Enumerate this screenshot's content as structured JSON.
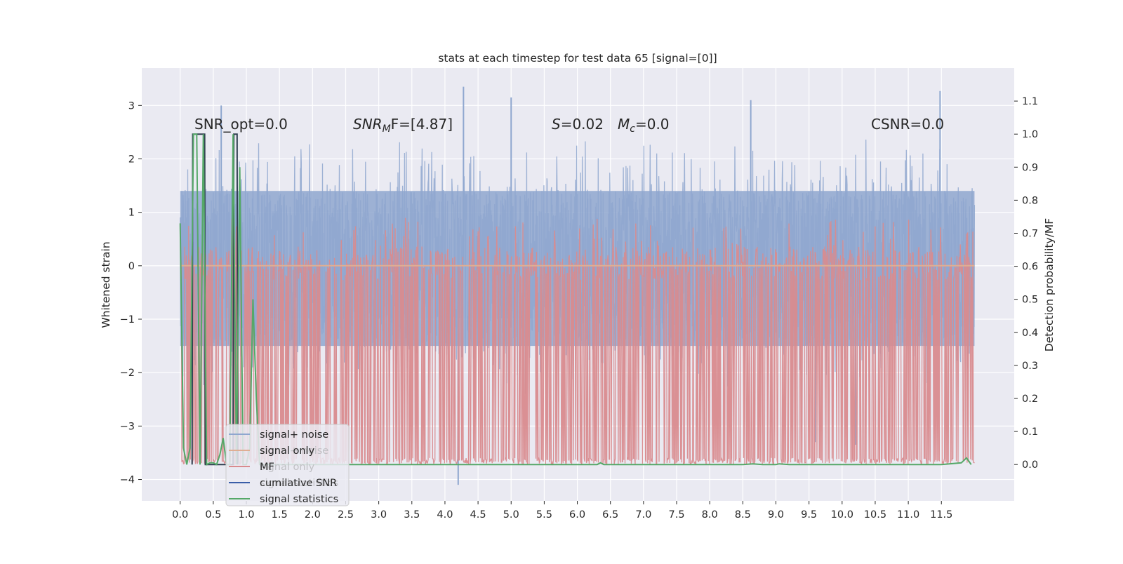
{
  "chart_data": {
    "type": "line",
    "title": "stats at each timestep for test data 65 [signal=[0]]",
    "ylabel": "Whitened strain",
    "y2label": "Detection probability/MF",
    "ylim": [
      -4.4,
      3.7
    ],
    "y2lim": [
      -0.11,
      1.2
    ],
    "xlim": [
      -0.58,
      12.6
    ],
    "x_ticks": [
      0.0,
      0.5,
      1.0,
      1.5,
      2.0,
      2.5,
      3.0,
      3.5,
      4.0,
      4.5,
      5.0,
      5.5,
      6.0,
      6.5,
      7.0,
      7.5,
      8.0,
      8.5,
      9.0,
      9.5,
      10.0,
      10.5,
      11.0,
      11.5
    ],
    "x_tick_labels": [
      "0.0",
      "0.5",
      "1.0",
      "1.5",
      "2.0",
      "2.5",
      "3.0",
      "3.5",
      "4.0",
      "4.5",
      "5.0",
      "5.5",
      "6.0",
      "6.5",
      "7.0",
      "7.5",
      "8.0",
      "8.5",
      "9.0",
      "9.5",
      "10.0",
      "10.5",
      "11.0",
      "11.5"
    ],
    "y_ticks": [
      -4,
      -3,
      -2,
      -1,
      0,
      1,
      2,
      3
    ],
    "y_tick_labels": [
      "−4",
      "−3",
      "−2",
      "−1",
      "0",
      "1",
      "2",
      "3"
    ],
    "y2_ticks": [
      0.0,
      0.1,
      0.2,
      0.3,
      0.4,
      0.5,
      0.6,
      0.7,
      0.8,
      0.9,
      1.0,
      1.1
    ],
    "y2_tick_labels": [
      "0.0",
      "0.1",
      "0.2",
      "0.3",
      "0.4",
      "0.5",
      "0.6",
      "0.7",
      "0.8",
      "0.9",
      "1.0",
      "1.1"
    ],
    "grid": true,
    "legend_placement": "lower-left",
    "annotations": {
      "snr_opt": "SNR_opt=0.0",
      "snr_mf_prefix": "SNR",
      "snr_mf_sub": "M",
      "snr_mf_suffix": "F=[4.87]",
      "s_var": "S",
      "s_val": "=0.02",
      "mc_var": "M",
      "mc_sub": "c",
      "mc_val": "=0.0",
      "csnr": "CSNR=0.0"
    },
    "legend": [
      {
        "label": "signal+ noise",
        "color": "#8fa7cf"
      },
      {
        "label": "signal only",
        "color": "#dfae93"
      },
      {
        "label": "MF",
        "color": "#d98b8e"
      },
      {
        "label": "cumilative SNR",
        "color": "#3a5ea8"
      },
      {
        "label": "signal statistics",
        "color": "#55a868"
      }
    ],
    "ghost_legend": [
      "signal+ noise",
      "signal only",
      "signal statistics"
    ],
    "series": [
      {
        "name": "signal+ noise",
        "axis": "left",
        "color": "#8fa7cf",
        "envelope": {
          "x_start": 0.0,
          "x_end": 12.0,
          "upper_typical": [
            1.4,
            2.4
          ],
          "lower_typical": [
            -1.5,
            -2.4
          ],
          "spikes": [
            {
              "x": 4.2,
              "y": -4.1
            },
            {
              "x": 4.28,
              "y": 3.35
            },
            {
              "x": 11.48,
              "y": 3.27
            },
            {
              "x": 5.0,
              "y": 3.15
            },
            {
              "x": 8.62,
              "y": 3.1
            },
            {
              "x": 0.62,
              "y": 3.0
            },
            {
              "x": 10.2,
              "y": -3.35
            },
            {
              "x": 9.6,
              "y": -3.3
            }
          ]
        }
      },
      {
        "name": "signal only",
        "axis": "left",
        "color": "#dfae93",
        "x": [
          0.0,
          0.05,
          12.0
        ],
        "y": [
          0.0,
          0.0,
          0.0
        ]
      },
      {
        "name": "MF",
        "axis": "right",
        "color": "#d98b8e",
        "band": {
          "base": 0.0,
          "typical_peak": [
            0.62,
            0.66
          ],
          "max_peak": 0.75
        }
      },
      {
        "name": "cumilative SNR",
        "axis": "right",
        "color": "#2f3e4f",
        "x": [
          0.18,
          0.19,
          0.37,
          0.38,
          0.8,
          0.81,
          0.86,
          0.87
        ],
        "y": [
          0.0,
          1.0,
          1.0,
          0.0,
          0.0,
          1.0,
          1.0,
          0.0
        ]
      },
      {
        "name": "signal statistics",
        "axis": "right",
        "color": "#55a868",
        "x": [
          0.0,
          0.05,
          0.1,
          0.15,
          0.2,
          0.25,
          0.3,
          0.35,
          0.4,
          0.45,
          0.5,
          0.55,
          0.6,
          0.65,
          0.7,
          0.75,
          0.8,
          0.85,
          0.9,
          0.95,
          1.0,
          1.05,
          1.1,
          1.15,
          1.2,
          1.3,
          1.5,
          2.0,
          3.0,
          4.0,
          5.0,
          6.0,
          6.2,
          6.3,
          6.35,
          6.4,
          6.5,
          7.0,
          8.0,
          8.5,
          8.65,
          8.8,
          9.0,
          9.05,
          9.2,
          9.5,
          10.0,
          11.0,
          11.5,
          11.8,
          11.88,
          11.95
        ],
        "y": [
          0.73,
          0.05,
          0.0,
          0.05,
          1.0,
          1.0,
          0.0,
          1.0,
          0.0,
          0.005,
          0.005,
          0.0,
          0.03,
          0.08,
          0.0,
          0.0,
          1.0,
          0.0,
          0.9,
          0.0,
          0.0,
          0.05,
          0.5,
          0.2,
          0.0,
          0.0,
          0.0,
          0.0,
          0.0,
          0.0,
          0.0,
          0.0,
          0.0,
          0.0,
          0.005,
          0.0,
          0.0,
          0.0,
          0.0,
          0.0,
          0.002,
          0.0,
          0.0,
          0.002,
          0.0,
          0.0,
          0.0,
          0.0,
          0.0,
          0.005,
          0.02,
          0.0
        ]
      }
    ]
  }
}
